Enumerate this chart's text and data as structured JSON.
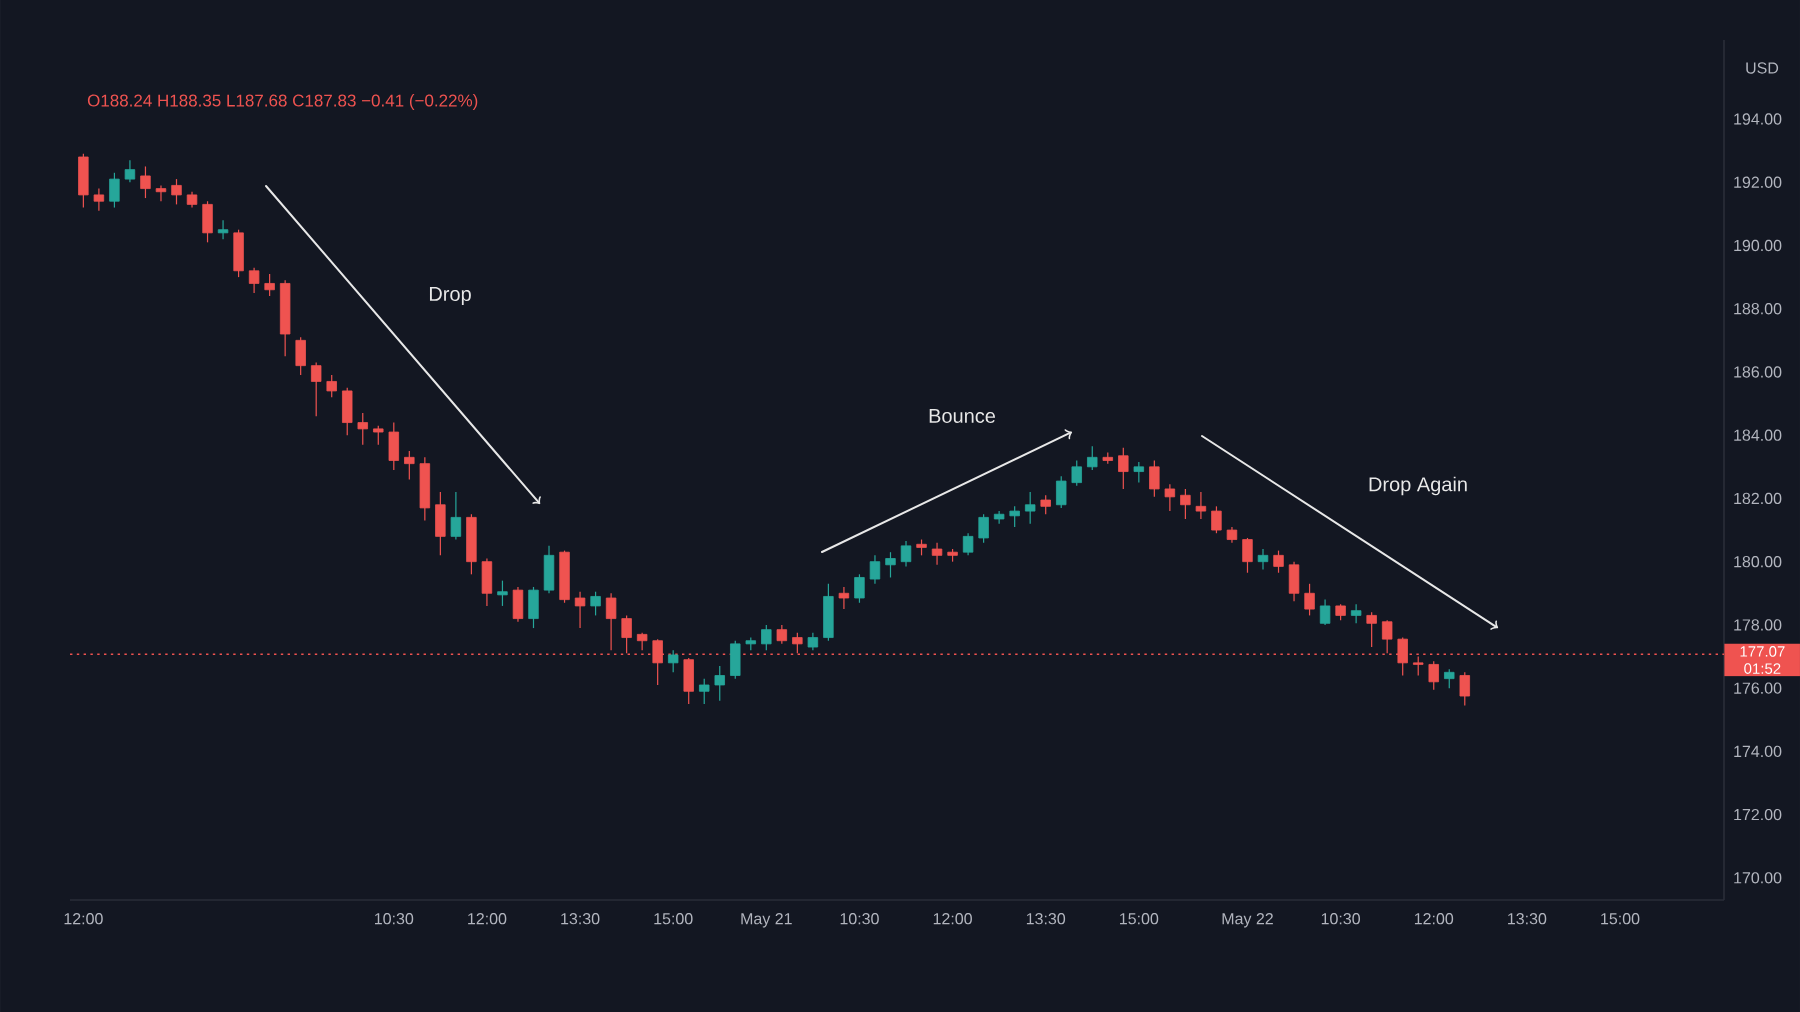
{
  "chart_data": {
    "type": "candlestick",
    "subtitle": "O188.24 H188.35 L187.68 C187.83 −0.41 (−0.22%)",
    "ylabel": "USD",
    "categories": [
      "12:00",
      null,
      null,
      null,
      null,
      null,
      null,
      null,
      null,
      null,
      null,
      null,
      null,
      null,
      null,
      null,
      null,
      null,
      null,
      null,
      "10:30",
      null,
      null,
      null,
      null,
      null,
      "12:00",
      null,
      null,
      null,
      null,
      null,
      "13:30",
      null,
      null,
      null,
      null,
      null,
      "15:00",
      null,
      null,
      null,
      null,
      null,
      "May 21",
      null,
      null,
      null,
      null,
      null,
      "10:30",
      null,
      null,
      null,
      null,
      null,
      "12:00",
      null,
      null,
      null,
      null,
      null,
      "13:30",
      null,
      null,
      null,
      null,
      null,
      "15:00",
      null,
      null,
      null,
      null,
      null,
      null,
      "May 22",
      null,
      null,
      null,
      null,
      null,
      "10:30",
      null,
      null,
      null,
      null,
      null,
      "12:00",
      null,
      null,
      null,
      null,
      null,
      "13:30",
      null,
      null,
      null,
      null,
      null,
      "15:00",
      null,
      null,
      null,
      null,
      null,
      null
    ],
    "ohlc": [
      [
        192.8,
        192.9,
        191.2,
        191.6
      ],
      [
        191.6,
        191.8,
        191.1,
        191.4
      ],
      [
        191.4,
        192.3,
        191.2,
        192.1
      ],
      [
        192.1,
        192.7,
        192.0,
        192.4
      ],
      [
        192.2,
        192.5,
        191.5,
        191.8
      ],
      [
        191.8,
        191.9,
        191.4,
        191.7
      ],
      [
        191.9,
        192.1,
        191.3,
        191.6
      ],
      [
        191.6,
        191.7,
        191.2,
        191.3
      ],
      [
        191.3,
        191.4,
        190.1,
        190.4
      ],
      [
        190.4,
        190.8,
        190.2,
        190.5
      ],
      [
        190.4,
        190.5,
        189.0,
        189.2
      ],
      [
        189.2,
        189.3,
        188.5,
        188.8
      ],
      [
        188.8,
        189.1,
        188.4,
        188.6
      ],
      [
        188.8,
        188.9,
        186.5,
        187.2
      ],
      [
        187.0,
        187.1,
        185.9,
        186.2
      ],
      [
        186.2,
        186.3,
        184.6,
        185.7
      ],
      [
        185.7,
        185.9,
        185.2,
        185.4
      ],
      [
        185.4,
        185.5,
        184.0,
        184.4
      ],
      [
        184.4,
        184.7,
        183.7,
        184.2
      ],
      [
        184.2,
        184.3,
        183.7,
        184.1
      ],
      [
        184.1,
        184.4,
        182.9,
        183.2
      ],
      [
        183.3,
        183.5,
        182.6,
        183.1
      ],
      [
        183.1,
        183.3,
        181.3,
        181.7
      ],
      [
        181.8,
        182.2,
        180.2,
        180.8
      ],
      [
        180.8,
        182.2,
        180.7,
        181.4
      ],
      [
        181.4,
        181.5,
        179.6,
        180.0
      ],
      [
        180.0,
        180.1,
        178.6,
        179.0
      ],
      [
        178.95,
        179.4,
        178.6,
        179.05
      ],
      [
        179.1,
        179.2,
        178.1,
        178.2
      ],
      [
        178.2,
        179.2,
        177.9,
        179.1
      ],
      [
        179.1,
        180.5,
        179.0,
        180.2
      ],
      [
        180.3,
        180.35,
        178.7,
        178.8
      ],
      [
        178.85,
        179.05,
        177.9,
        178.6
      ],
      [
        178.6,
        179.05,
        178.3,
        178.9
      ],
      [
        178.85,
        179.0,
        177.2,
        178.2
      ],
      [
        178.2,
        178.3,
        177.1,
        177.6
      ],
      [
        177.7,
        177.75,
        177.2,
        177.5
      ],
      [
        177.5,
        177.55,
        176.1,
        176.8
      ],
      [
        176.8,
        177.2,
        176.5,
        177.05
      ],
      [
        176.9,
        176.95,
        175.5,
        175.9
      ],
      [
        175.9,
        176.3,
        175.5,
        176.1
      ],
      [
        176.1,
        176.7,
        175.6,
        176.4
      ],
      [
        176.4,
        177.5,
        176.3,
        177.4
      ],
      [
        177.4,
        177.6,
        177.2,
        177.5
      ],
      [
        177.4,
        178.0,
        177.2,
        177.85
      ],
      [
        177.85,
        178.0,
        177.4,
        177.5
      ],
      [
        177.6,
        177.75,
        177.1,
        177.4
      ],
      [
        177.3,
        177.75,
        177.2,
        177.6
      ],
      [
        177.6,
        179.3,
        177.5,
        178.9
      ],
      [
        179.0,
        179.2,
        178.5,
        178.85
      ],
      [
        178.85,
        179.6,
        178.7,
        179.5
      ],
      [
        179.45,
        180.2,
        179.3,
        180.0
      ],
      [
        179.9,
        180.3,
        179.5,
        180.1
      ],
      [
        180.0,
        180.65,
        179.85,
        180.5
      ],
      [
        180.55,
        180.7,
        180.2,
        180.45
      ],
      [
        180.4,
        180.6,
        179.9,
        180.2
      ],
      [
        180.3,
        180.4,
        180.0,
        180.2
      ],
      [
        180.3,
        180.9,
        180.2,
        180.8
      ],
      [
        180.75,
        181.5,
        180.6,
        181.4
      ],
      [
        181.35,
        181.6,
        181.2,
        181.5
      ],
      [
        181.45,
        181.75,
        181.1,
        181.6
      ],
      [
        181.6,
        182.2,
        181.2,
        181.8
      ],
      [
        181.95,
        182.1,
        181.5,
        181.75
      ],
      [
        181.8,
        182.7,
        181.7,
        182.55
      ],
      [
        182.5,
        183.2,
        182.4,
        183.0
      ],
      [
        183.0,
        183.65,
        182.9,
        183.3
      ],
      [
        183.3,
        183.45,
        183.1,
        183.2
      ],
      [
        183.35,
        183.6,
        182.3,
        182.85
      ],
      [
        182.85,
        183.15,
        182.5,
        183.0
      ],
      [
        183.0,
        183.2,
        182.05,
        182.3
      ],
      [
        182.3,
        182.45,
        181.6,
        182.05
      ],
      [
        182.1,
        182.3,
        181.35,
        181.8
      ],
      [
        181.75,
        182.2,
        181.35,
        181.6
      ],
      [
        181.6,
        181.75,
        180.9,
        181.0
      ],
      [
        181.0,
        181.1,
        180.6,
        180.7
      ],
      [
        180.7,
        180.75,
        179.65,
        180.0
      ],
      [
        180.0,
        180.4,
        179.75,
        180.2
      ],
      [
        180.2,
        180.35,
        179.65,
        179.85
      ],
      [
        179.9,
        180.0,
        178.75,
        179.0
      ],
      [
        179.0,
        179.3,
        178.3,
        178.5
      ],
      [
        178.05,
        178.8,
        178.0,
        178.6
      ],
      [
        178.6,
        178.65,
        178.15,
        178.3
      ],
      [
        178.3,
        178.65,
        178.05,
        178.45
      ],
      [
        178.3,
        178.4,
        177.3,
        178.05
      ],
      [
        178.1,
        178.15,
        177.1,
        177.55
      ],
      [
        177.55,
        177.6,
        176.4,
        176.8
      ],
      [
        176.8,
        177.0,
        176.4,
        176.75
      ],
      [
        176.75,
        176.85,
        175.95,
        176.2
      ],
      [
        176.3,
        176.6,
        176.0,
        176.5
      ],
      [
        176.4,
        176.5,
        175.45,
        175.75
      ],
      null,
      null,
      null,
      null,
      null,
      null,
      null,
      null,
      null,
      null,
      null,
      null,
      null,
      null,
      null,
      null
    ],
    "colors": [
      "#ef5350",
      "#ef5350",
      "#26a69a",
      "#26a69a",
      "#ef5350",
      "#ef5350",
      "#ef5350",
      "#ef5350",
      "#ef5350",
      "#26a69a",
      "#ef5350",
      "#ef5350",
      "#ef5350",
      "#ef5350",
      "#ef5350",
      "#ef5350",
      "#ef5350",
      "#ef5350",
      "#ef5350",
      "#ef5350",
      "#ef5350",
      "#ef5350",
      "#ef5350",
      "#ef5350",
      "#26a69a",
      "#ef5350",
      "#ef5350",
      "#26a69a",
      "#ef5350",
      "#26a69a",
      "#26a69a",
      "#ef5350",
      "#ef5350",
      "#26a69a",
      "#ef5350",
      "#ef5350",
      "#ef5350",
      "#ef5350",
      "#26a69a",
      "#ef5350",
      "#26a69a",
      "#26a69a",
      "#26a69a",
      "#26a69a",
      "#26a69a",
      "#ef5350",
      "#ef5350",
      "#26a69a",
      "#26a69a",
      "#ef5350",
      "#26a69a",
      "#26a69a",
      "#26a69a",
      "#26a69a",
      "#ef5350",
      "#ef5350",
      "#ef5350",
      "#26a69a",
      "#26a69a",
      "#26a69a",
      "#26a69a",
      "#26a69a",
      "#ef5350",
      "#26a69a",
      "#26a69a",
      "#26a69a",
      "#ef5350",
      "#ef5350",
      "#26a69a",
      "#ef5350",
      "#ef5350",
      "#ef5350",
      "#ef5350",
      "#ef5350",
      "#ef5350",
      "#ef5350",
      "#26a69a",
      "#ef5350",
      "#ef5350",
      "#ef5350",
      "#26a69a",
      "#ef5350",
      "#26a69a",
      "#ef5350",
      "#ef5350",
      "#ef5350",
      "#ef5350",
      "#ef5350",
      "#26a69a",
      "#ef5350",
      null,
      null,
      null,
      null,
      null,
      null,
      null,
      null,
      null,
      null,
      null,
      null,
      null,
      null,
      null,
      null
    ],
    "ylim": [
      169.3,
      196.5
    ],
    "yticks": [
      {
        "value": 170,
        "label": "170.00"
      },
      {
        "value": 172,
        "label": "172.00"
      },
      {
        "value": 174,
        "label": "174.00"
      },
      {
        "value": 176,
        "label": "176.00"
      },
      {
        "value": 178,
        "label": "178.00"
      },
      {
        "value": 180,
        "label": "180.00"
      },
      {
        "value": 182,
        "label": "182.00"
      },
      {
        "value": 184,
        "label": "184.00"
      },
      {
        "value": 186,
        "label": "186.00"
      },
      {
        "value": 188,
        "label": "188.00"
      },
      {
        "value": 190,
        "label": "190.00"
      },
      {
        "value": 192,
        "label": "192.00"
      },
      {
        "value": 194,
        "label": "194.00"
      }
    ],
    "ref_lines": [
      {
        "axis": "y",
        "value": 177.07,
        "label": "177.07",
        "color": "#ef5350",
        "line_style": "dotted"
      }
    ],
    "annotations": [
      "Drop",
      "Bounce",
      "Drop Again",
      "01:52"
    ]
  }
}
